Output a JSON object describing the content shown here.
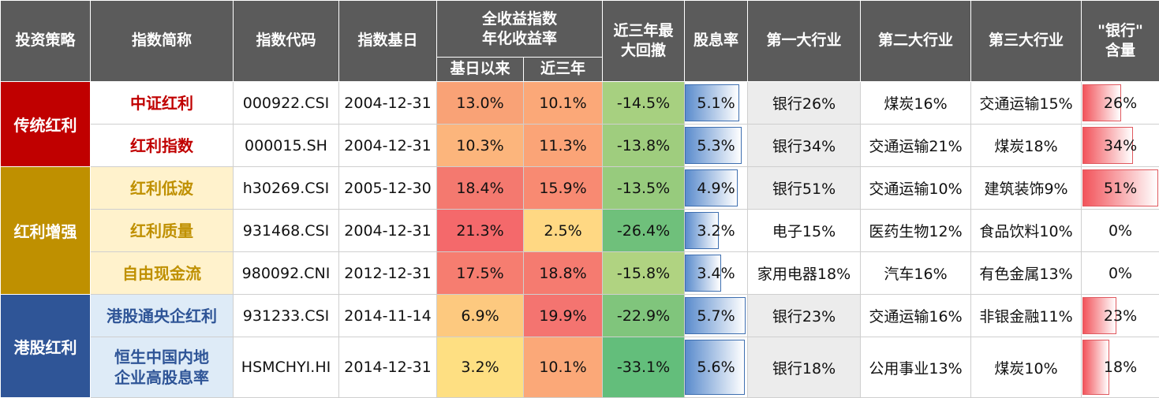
{
  "headers": {
    "strategy": "投资策略",
    "name": "指数简称",
    "code": "指数代码",
    "base_date": "指数基日",
    "annual_return": "全收益指数\n年化收益率",
    "since_base": "基日以来",
    "three_year": "近三年",
    "max_drawdown": "近三年最\n大回撤",
    "dividend_yield": "股息率",
    "industry1": "第一大行业",
    "industry2": "第二大行业",
    "industry3": "第三大行业",
    "bank_weight": "\"银行\"\n含量"
  },
  "groups": [
    {
      "label": "传统红利",
      "color": "#c00000",
      "name_color": "#c00000",
      "row_bg": "#ffffff"
    },
    {
      "label": "红利增强",
      "color": "#bf9000",
      "name_color": "#bf9000",
      "row_bg": "#fff2cc"
    },
    {
      "label": "港股红利",
      "color": "#2f5597",
      "name_color": "#2f5597",
      "row_bg": "#deebf7"
    }
  ],
  "rows": [
    {
      "name": "中证红利",
      "code": "000922.CSI",
      "base_date": "2004-12-31",
      "since_base": "13.0%",
      "three_year": "10.1%",
      "max_drawdown": "-14.5%",
      "dividend_yield": "5.1%",
      "industry1": "银行26%",
      "industry2": "煤炭16%",
      "industry3": "交通运输15%",
      "bank_weight": "26%",
      "colors": {
        "since_base": "#f9a276",
        "three_year": "#fba878",
        "max_drawdown": "#a7d080"
      },
      "dividend_yield_value": 5.1,
      "bank_weight_value": 26
    },
    {
      "name": "红利指数",
      "code": "000015.SH",
      "base_date": "2004-12-31",
      "since_base": "10.3%",
      "three_year": "11.3%",
      "max_drawdown": "-13.8%",
      "dividend_yield": "5.3%",
      "industry1": "银行34%",
      "industry2": "交通运输21%",
      "industry3": "煤炭18%",
      "bank_weight": "34%",
      "colors": {
        "since_base": "#fcb57c",
        "three_year": "#fba477",
        "max_drawdown": "#9fcd7e"
      },
      "dividend_yield_value": 5.3,
      "bank_weight_value": 34
    },
    {
      "name": "红利低波",
      "code": "h30269.CSI",
      "base_date": "2005-12-30",
      "since_base": "18.4%",
      "three_year": "15.9%",
      "max_drawdown": "-13.5%",
      "dividend_yield": "4.9%",
      "industry1": "银行51%",
      "industry2": "交通运输10%",
      "industry3": "建筑装饰9%",
      "bank_weight": "51%",
      "colors": {
        "since_base": "#f4796f",
        "three_year": "#f88a72",
        "max_drawdown": "#97cb7d"
      },
      "dividend_yield_value": 4.9,
      "bank_weight_value": 51
    },
    {
      "name": "红利质量",
      "code": "931468.CSI",
      "base_date": "2004-12-31",
      "since_base": "21.3%",
      "three_year": "2.5%",
      "max_drawdown": "-26.4%",
      "dividend_yield": "3.2%",
      "industry1": "电子15%",
      "industry2": "医药生物12%",
      "industry3": "食品饮料10%",
      "bank_weight": "0%",
      "colors": {
        "since_base": "#f4696b",
        "three_year": "#ffd883",
        "max_drawdown": "#6fc07b"
      },
      "dividend_yield_value": 3.2,
      "bank_weight_value": 0
    },
    {
      "name": "自由现金流",
      "code": "980092.CNI",
      "base_date": "2012-12-31",
      "since_base": "17.5%",
      "three_year": "18.8%",
      "max_drawdown": "-15.8%",
      "dividend_yield": "3.4%",
      "industry1": "家用电器18%",
      "industry2": "汽车16%",
      "industry3": "有色金属13%",
      "bank_weight": "0%",
      "colors": {
        "since_base": "#f67d70",
        "three_year": "#f57b70",
        "max_drawdown": "#b0d381"
      },
      "dividend_yield_value": 3.4,
      "bank_weight_value": 0
    },
    {
      "name": "港股通央企红利",
      "code": "931233.CSI",
      "base_date": "2014-11-14",
      "since_base": "6.9%",
      "three_year": "19.9%",
      "max_drawdown": "-22.9%",
      "dividend_yield": "5.7%",
      "industry1": "银行23%",
      "industry2": "交通运输16%",
      "industry3": "非银金融11%",
      "bank_weight": "23%",
      "colors": {
        "since_base": "#fdc97f",
        "three_year": "#f47470",
        "max_drawdown": "#80c57c"
      },
      "dividend_yield_value": 5.7,
      "bank_weight_value": 23
    },
    {
      "name": "恒生中国内地企业高股息率",
      "name_line1": "恒生中国内地",
      "name_line2": "企业高股息率",
      "code": "HSMCHYI.HI",
      "base_date": "2014-12-31",
      "since_base": "3.2%",
      "three_year": "10.1%",
      "max_drawdown": "-33.1%",
      "dividend_yield": "5.6%",
      "industry1": "银行18%",
      "industry2": "公用事业13%",
      "industry3": "煤炭10%",
      "bank_weight": "18%",
      "colors": {
        "since_base": "#fedf82",
        "three_year": "#fba878",
        "max_drawdown": "#63be7b"
      },
      "dividend_yield_value": 5.6,
      "bank_weight_value": 18
    }
  ],
  "styles": {
    "header_bg": "#5b5b5b",
    "bank_cell_bg": "#ececec",
    "yield_bar_gradient": [
      "#5b8ccd",
      "#ffffff"
    ],
    "bank_bar_gradient": [
      "#f2545b",
      "#ffffff"
    ]
  }
}
